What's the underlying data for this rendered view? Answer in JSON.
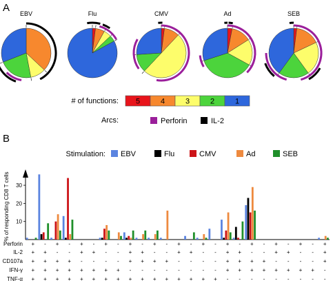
{
  "panel_a_label": "A",
  "panel_b_label": "B",
  "function_legend": {
    "title": "# of functions:",
    "items": [
      {
        "label": "5",
        "color": "#e8141b"
      },
      {
        "label": "4",
        "color": "#f7882e"
      },
      {
        "label": "3",
        "color": "#fdfd6b"
      },
      {
        "label": "2",
        "color": "#4cd43c"
      },
      {
        "label": "1",
        "color": "#2e67dc"
      }
    ]
  },
  "arc_legend": {
    "title": "Arcs:",
    "items": [
      {
        "label": "Perforin",
        "color": "#9b1f9b"
      },
      {
        "label": "IL-2",
        "color": "#000000"
      }
    ]
  },
  "stimulation_legend": {
    "title": "Stimulation:",
    "items": [
      {
        "label": "EBV",
        "color": "#5b84e0"
      },
      {
        "label": "Flu",
        "color": "#000000"
      },
      {
        "label": "CMV",
        "color": "#cc1418"
      },
      {
        "label": "Ad",
        "color": "#ee8a3f"
      },
      {
        "label": "SEB",
        "color": "#1f8f2a"
      }
    ]
  },
  "chart_data": [
    {
      "type": "pie",
      "panel": "A",
      "pies": [
        {
          "title": "EBV",
          "slices": [
            {
              "functions": "4",
              "value": 37
            },
            {
              "functions": "3",
              "value": 10
            },
            {
              "functions": "2",
              "value": 22
            },
            {
              "functions": "1",
              "value": 31
            }
          ]
        },
        {
          "title": "Flu",
          "slices": [
            {
              "functions": "5",
              "value": 2
            },
            {
              "functions": "4",
              "value": 6
            },
            {
              "functions": "3",
              "value": 5
            },
            {
              "functions": "2",
              "value": 4
            },
            {
              "functions": "1",
              "value": 83
            }
          ]
        },
        {
          "title": "CMV",
          "slices": [
            {
              "functions": "5",
              "value": 2
            },
            {
              "functions": "4",
              "value": 10
            },
            {
              "functions": "3",
              "value": 50
            },
            {
              "functions": "2",
              "value": 12
            },
            {
              "functions": "1",
              "value": 26
            }
          ]
        },
        {
          "title": "Ad",
          "slices": [
            {
              "functions": "5",
              "value": 3
            },
            {
              "functions": "4",
              "value": 13
            },
            {
              "functions": "3",
              "value": 17
            },
            {
              "functions": "2",
              "value": 37
            },
            {
              "functions": "1",
              "value": 30
            }
          ]
        },
        {
          "title": "SEB",
          "slices": [
            {
              "functions": "5",
              "value": 2
            },
            {
              "functions": "4",
              "value": 16
            },
            {
              "functions": "3",
              "value": 22
            },
            {
              "functions": "2",
              "value": 20
            },
            {
              "functions": "1",
              "value": 40
            }
          ]
        }
      ]
    },
    {
      "type": "bar",
      "panel": "B",
      "ylabel": "% of responding CD8 T cells",
      "yticks": [
        10,
        20,
        30
      ],
      "ylim": [
        0,
        40
      ],
      "row_labels": [
        "Perforin",
        "IL-2",
        "CD107a",
        "IFN-γ",
        "TNF-α"
      ],
      "categories": [
        {
          "Perforin": "+",
          "IL-2": "+",
          "CD107a": "+",
          "IFN-γ": "+",
          "TNF-α": "+"
        },
        {
          "Perforin": "-",
          "IL-2": "+",
          "CD107a": "+",
          "IFN-γ": "+",
          "TNF-α": "+"
        },
        {
          "Perforin": "+",
          "IL-2": "-",
          "CD107a": "+",
          "IFN-γ": "+",
          "TNF-α": "+"
        },
        {
          "Perforin": "-",
          "IL-2": "-",
          "CD107a": "+",
          "IFN-γ": "+",
          "TNF-α": "+"
        },
        {
          "Perforin": "+",
          "IL-2": "+",
          "CD107a": "-",
          "IFN-γ": "+",
          "TNF-α": "+"
        },
        {
          "Perforin": "-",
          "IL-2": "+",
          "CD107a": "-",
          "IFN-γ": "+",
          "TNF-α": "+"
        },
        {
          "Perforin": "+",
          "IL-2": "-",
          "CD107a": "-",
          "IFN-γ": "+",
          "TNF-α": "+"
        },
        {
          "Perforin": "-",
          "IL-2": "-",
          "CD107a": "-",
          "IFN-γ": "+",
          "TNF-α": "+"
        },
        {
          "Perforin": "+",
          "IL-2": "+",
          "CD107a": "+",
          "IFN-γ": "-",
          "TNF-α": "+"
        },
        {
          "Perforin": "-",
          "IL-2": "+",
          "CD107a": "+",
          "IFN-γ": "-",
          "TNF-α": "+"
        },
        {
          "Perforin": "+",
          "IL-2": "-",
          "CD107a": "+",
          "IFN-γ": "-",
          "TNF-α": "+"
        },
        {
          "Perforin": "-",
          "IL-2": "-",
          "CD107a": "+",
          "IFN-γ": "-",
          "TNF-α": "+"
        },
        {
          "Perforin": "+",
          "IL-2": "+",
          "CD107a": "-",
          "IFN-γ": "-",
          "TNF-α": "+"
        },
        {
          "Perforin": "-",
          "IL-2": "+",
          "CD107a": "-",
          "IFN-γ": "-",
          "TNF-α": "+"
        },
        {
          "Perforin": "+",
          "IL-2": "-",
          "CD107a": "-",
          "IFN-γ": "-",
          "TNF-α": "+"
        },
        {
          "Perforin": "-",
          "IL-2": "-",
          "CD107a": "-",
          "IFN-γ": "-",
          "TNF-α": "+"
        },
        {
          "Perforin": "+",
          "IL-2": "+",
          "CD107a": "+",
          "IFN-γ": "+",
          "TNF-α": "-"
        },
        {
          "Perforin": "-",
          "IL-2": "+",
          "CD107a": "+",
          "IFN-γ": "+",
          "TNF-α": "-"
        },
        {
          "Perforin": "+",
          "IL-2": "-",
          "CD107a": "+",
          "IFN-γ": "+",
          "TNF-α": "-"
        },
        {
          "Perforin": "-",
          "IL-2": "-",
          "CD107a": "+",
          "IFN-γ": "+",
          "TNF-α": "-"
        },
        {
          "Perforin": "+",
          "IL-2": "+",
          "CD107a": "-",
          "IFN-γ": "+",
          "TNF-α": "-"
        },
        {
          "Perforin": "-",
          "IL-2": "+",
          "CD107a": "-",
          "IFN-γ": "+",
          "TNF-α": "-"
        },
        {
          "Perforin": "+",
          "IL-2": "-",
          "CD107a": "-",
          "IFN-γ": "+",
          "TNF-α": "-"
        },
        {
          "Perforin": "-",
          "IL-2": "-",
          "CD107a": "-",
          "IFN-γ": "+",
          "TNF-α": "-"
        },
        {
          "Perforin": "+",
          "IL-2": "+",
          "CD107a": "+",
          "IFN-γ": "-",
          "TNF-α": "-"
        }
      ],
      "series": [
        {
          "name": "EBV",
          "values": [
            1,
            36,
            1,
            13,
            0,
            0,
            1,
            0,
            4,
            1,
            1,
            1,
            0,
            2,
            1,
            6,
            11,
            1,
            19,
            0,
            0,
            0,
            0,
            0,
            1
          ]
        },
        {
          "name": "Flu",
          "values": [
            0,
            3,
            0,
            1,
            0,
            0,
            1,
            0,
            1,
            0,
            0,
            0,
            0,
            0,
            0,
            0,
            1,
            7,
            23,
            0,
            0,
            0,
            0,
            0,
            0
          ]
        },
        {
          "name": "CMV",
          "values": [
            0,
            4,
            10,
            34,
            0,
            0,
            6,
            0,
            2,
            0,
            0,
            0,
            0,
            0,
            0,
            0,
            5,
            1,
            15,
            0,
            0,
            0,
            0,
            0,
            0
          ]
        },
        {
          "name": "Ad",
          "values": [
            0,
            0,
            14,
            3,
            0,
            0,
            8,
            4,
            1,
            3,
            3,
            16,
            0,
            0,
            3,
            0,
            15,
            0,
            29,
            0,
            0,
            0,
            0,
            0,
            2
          ]
        },
        {
          "name": "SEB",
          "values": [
            1,
            9,
            5,
            11,
            0,
            0,
            5,
            2,
            5,
            5,
            5,
            0,
            0,
            4,
            1,
            0,
            4,
            10,
            16,
            0,
            0,
            0,
            0,
            0,
            1
          ]
        }
      ]
    }
  ]
}
